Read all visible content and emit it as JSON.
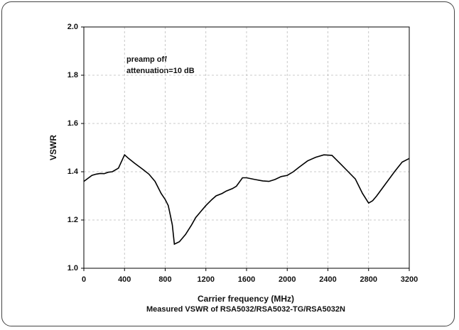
{
  "chart_data": {
    "type": "line",
    "xlabel": "Carrier frequency (MHz)",
    "ylabel": "VSWR",
    "caption": "Measured VSWR of RSA5032/RSA5032-TG/RSA5032N",
    "annotations": [
      "preamp off",
      "attenuation=10 dB"
    ],
    "x": [
      0,
      80,
      120,
      160,
      200,
      240,
      280,
      340,
      400,
      440,
      500,
      580,
      640,
      700,
      760,
      800,
      830,
      850,
      870,
      890,
      940,
      1000,
      1060,
      1100,
      1160,
      1200,
      1260,
      1300,
      1360,
      1400,
      1460,
      1500,
      1560,
      1600,
      1680,
      1760,
      1820,
      1880,
      1940,
      2000,
      2060,
      2120,
      2200,
      2280,
      2360,
      2440,
      2530,
      2600,
      2670,
      2740,
      2800,
      2840,
      2880,
      2950,
      3055,
      3130,
      3200
    ],
    "values": [
      1.36,
      1.385,
      1.39,
      1.393,
      1.392,
      1.398,
      1.4,
      1.415,
      1.47,
      1.455,
      1.435,
      1.41,
      1.39,
      1.36,
      1.31,
      1.285,
      1.26,
      1.22,
      1.18,
      1.1,
      1.11,
      1.14,
      1.18,
      1.21,
      1.24,
      1.26,
      1.285,
      1.3,
      1.31,
      1.32,
      1.33,
      1.34,
      1.375,
      1.375,
      1.368,
      1.362,
      1.36,
      1.368,
      1.38,
      1.385,
      1.4,
      1.42,
      1.445,
      1.46,
      1.47,
      1.468,
      1.43,
      1.4,
      1.37,
      1.31,
      1.27,
      1.28,
      1.3,
      1.34,
      1.4,
      1.44,
      1.455
    ],
    "color": "#000000",
    "xlim": [
      0,
      3200
    ],
    "xticks": [
      0,
      400,
      800,
      1200,
      1600,
      2000,
      2400,
      2800,
      3200
    ],
    "ylim": [
      1.0,
      2.0
    ],
    "yticks": [
      {
        "value": 1.0,
        "label": "1.0"
      },
      1.2,
      1.4,
      1.6,
      1.8,
      {
        "value": 2.0,
        "label": "2.0"
      }
    ],
    "grid": true
  }
}
